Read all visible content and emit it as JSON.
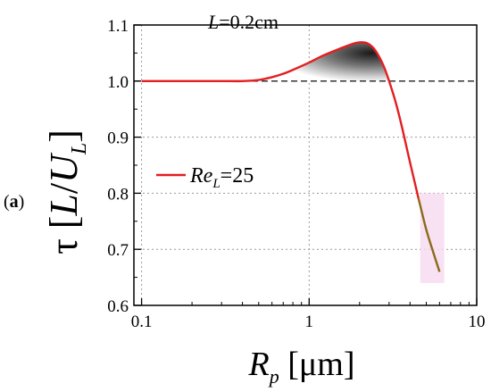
{
  "colors": {
    "line": "#e41e20",
    "tail": "#8b6a1a",
    "fill_dark": "#1a1a1a",
    "fill_light": "#ffffff",
    "dashed": "#222222",
    "grid": "#9a9a9a",
    "tail_glow": "#f6d9ef"
  },
  "panel_label": "(a)",
  "panel_label_bold": "a",
  "chart_data": {
    "type": "line",
    "x_scale": "log",
    "xlim": [
      0.09,
      10
    ],
    "ylim": [
      0.6,
      1.1
    ],
    "xticks": [
      0.1,
      1,
      10
    ],
    "xtick_labels": [
      "0.1",
      "1",
      "10"
    ],
    "yticks": [
      0.6,
      0.7,
      0.8,
      0.9,
      1.0,
      1.1
    ],
    "ytick_labels": [
      "0.6",
      "0.7",
      "0.8",
      "0.9",
      "1.0",
      "1.1"
    ],
    "grid": true,
    "reference_line": 1.0,
    "xlabel": {
      "main": "R",
      "sub": "p",
      "unit": " [μm]"
    },
    "ylabel": {
      "main": "τ [",
      "frac_num": "L",
      "slash": "/",
      "frac_den": "U",
      "den_sub": "L",
      "close": "]"
    },
    "annotation": {
      "var": "L",
      "text": "=0.2cm"
    },
    "legend": {
      "position": "left",
      "var": "Re",
      "sub": "L",
      "text": "=25"
    },
    "series": [
      {
        "name": "Re_L=25",
        "x": [
          0.1,
          0.2,
          0.3,
          0.4,
          0.5,
          0.6,
          0.7,
          0.8,
          1.0,
          1.2,
          1.5,
          1.8,
          2.0,
          2.2,
          2.4,
          2.6,
          2.8,
          3.0,
          3.3,
          3.6,
          4.0,
          4.5,
          5.0,
          5.5,
          6.0
        ],
        "y": [
          1.0,
          1.0,
          1.0,
          1.0,
          1.002,
          1.007,
          1.013,
          1.02,
          1.033,
          1.045,
          1.057,
          1.066,
          1.069,
          1.068,
          1.06,
          1.045,
          1.025,
          1.0,
          0.96,
          0.915,
          0.855,
          0.79,
          0.735,
          0.695,
          0.66
        ]
      }
    ]
  }
}
